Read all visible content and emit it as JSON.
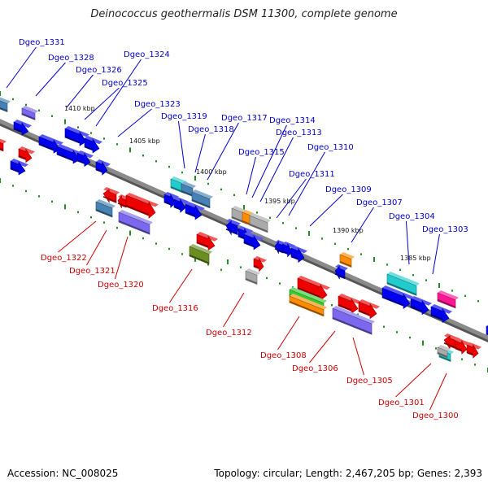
{
  "title": "Deinococcus geothermalis DSM 11300, complete genome",
  "footer": {
    "accession_label": "Accession:",
    "accession": "NC_008025",
    "summary": "Topology: circular; Length: 2,467,205 bp; Genes: 2,393"
  },
  "colors": {
    "backbone": "#8a8a8a",
    "upper_label": "#0000cc",
    "lower_label": "#cc0000",
    "tick": "#228b22",
    "blue": "#0000ee",
    "red": "#ee0000",
    "cyan": "#22cccc",
    "steel": "#4682b4",
    "purple": "#7b68ee",
    "olive": "#6b8e23",
    "orange": "#ff8c00",
    "green": "#32cd32",
    "pink": "#ff1493",
    "grey": "#aaaaaa"
  },
  "scale_labels": [
    "1410 kbp",
    "1405 kbp",
    "1400 kbp",
    "1395 kbp",
    "1390 kbp",
    "1385 kbp"
  ],
  "upper_labels": [
    "Dgeo_1331",
    "Dgeo_1328",
    "Dgeo_1326",
    "Dgeo_1324",
    "Dgeo_1325",
    "Dgeo_1323",
    "Dgeo_1319",
    "Dgeo_1317",
    "Dgeo_1318",
    "Dgeo_1314",
    "Dgeo_1313",
    "Dgeo_1315",
    "Dgeo_1310",
    "Dgeo_1311",
    "Dgeo_1309",
    "Dgeo_1307",
    "Dgeo_1304",
    "Dgeo_1303"
  ],
  "lower_labels": [
    "Dgeo_1322",
    "Dgeo_1321",
    "Dgeo_1320",
    "Dgeo_1316",
    "Dgeo_1312",
    "Dgeo_1308",
    "Dgeo_1306",
    "Dgeo_1305",
    "Dgeo_1301",
    "Dgeo_1300"
  ]
}
